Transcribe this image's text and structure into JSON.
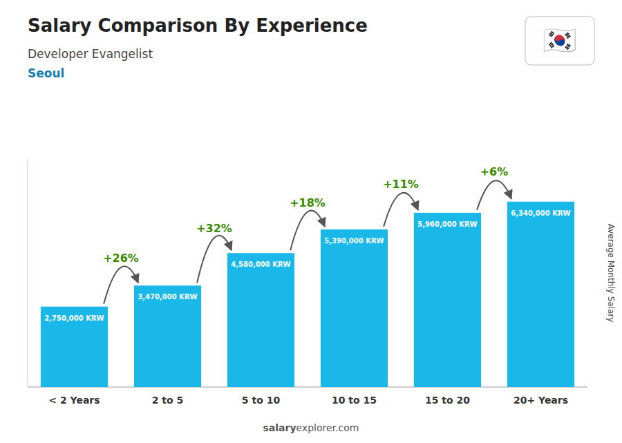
{
  "chart_data": {
    "type": "bar",
    "title": "Salary Comparison By Experience",
    "subtitle": "Developer Evangelist",
    "city": "Seoul",
    "ylabel": "Average Monthly Salary",
    "categories": [
      "< 2 Years",
      "2 to 5",
      "5 to 10",
      "10 to 15",
      "15 to 20",
      "20+ Years"
    ],
    "values": [
      2750000,
      3470000,
      4580000,
      5390000,
      5960000,
      6340000
    ],
    "value_labels": [
      "2,750,000 KRW",
      "3,470,000 KRW",
      "4,580,000 KRW",
      "5,390,000 KRW",
      "5,960,000 KRW",
      "6,340,000 KRW"
    ],
    "data_labels": true,
    "annotations": [
      "+26%",
      "+32%",
      "+18%",
      "+11%",
      "+6%"
    ],
    "color": "#1ab8e8",
    "ylim": [
      0,
      7800000
    ],
    "tick_labels": "x",
    "grid": false,
    "watermark": [
      "salary",
      "explorer.com"
    ],
    "flag": "🇰🇷"
  }
}
